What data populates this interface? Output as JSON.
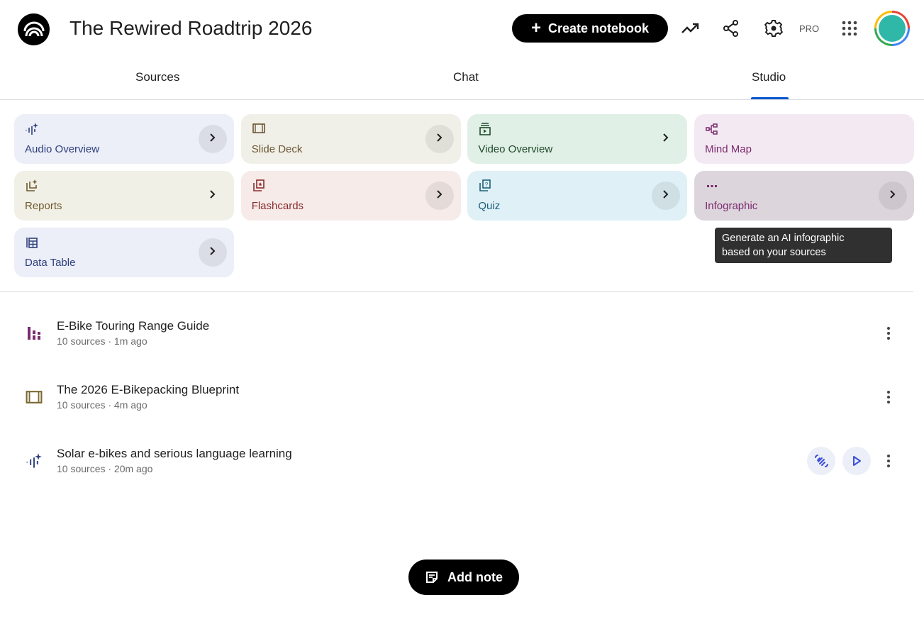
{
  "header": {
    "title": "The Rewired Roadtrip 2026",
    "create_label": "Create notebook",
    "pro_label": "PRO"
  },
  "tabs": [
    {
      "label": "Sources"
    },
    {
      "label": "Chat"
    },
    {
      "label": "Studio",
      "active": true
    }
  ],
  "studio_tools": [
    {
      "label": "Audio Overview",
      "icon": "audio-sparkle-icon",
      "bg": "#eceef8",
      "fg": "#2d3f7c"
    },
    {
      "label": "Slide Deck",
      "icon": "slides-icon",
      "bg": "#f1f0e8",
      "fg": "#6b5634"
    },
    {
      "label": "Video Overview",
      "icon": "video-icon",
      "bg": "#e1f0e6",
      "fg": "#1e4a2c"
    },
    {
      "label": "Mind Map",
      "icon": "mind-map-icon",
      "bg": "#f3e9f2",
      "fg": "#7b2b6f"
    },
    {
      "label": "Reports",
      "icon": "reports-icon",
      "bg": "#f1f0e6",
      "fg": "#6e5a30"
    },
    {
      "label": "Flashcards",
      "icon": "flashcards-icon",
      "bg": "#f6ebe9",
      "fg": "#8a2c2c"
    },
    {
      "label": "Quiz",
      "icon": "quiz-icon",
      "bg": "#dff0f6",
      "fg": "#1d5f7a"
    },
    {
      "label": "Infographic",
      "icon": "infographic-icon",
      "bg": "#ddd5dc",
      "fg": "#7b2b6f"
    },
    {
      "label": "Data Table",
      "icon": "data-table-icon",
      "bg": "#eceef8",
      "fg": "#2d3f7c"
    }
  ],
  "tooltip": {
    "line1": "Generate an AI infographic",
    "line2": "based on your sources"
  },
  "notes": [
    {
      "title": "E-Bike Touring Range Guide",
      "meta": "10 sources · 1m ago",
      "icon": "infographic-bars-icon"
    },
    {
      "title": "The 2026 E-Bikepacking Blueprint",
      "meta": "10 sources · 4m ago",
      "icon": "slides-icon"
    },
    {
      "title": "Solar e-bikes and serious language learning",
      "meta": "10 sources · 20m ago",
      "icon": "audio-sparkle-icon"
    }
  ],
  "add_note_label": "Add note"
}
